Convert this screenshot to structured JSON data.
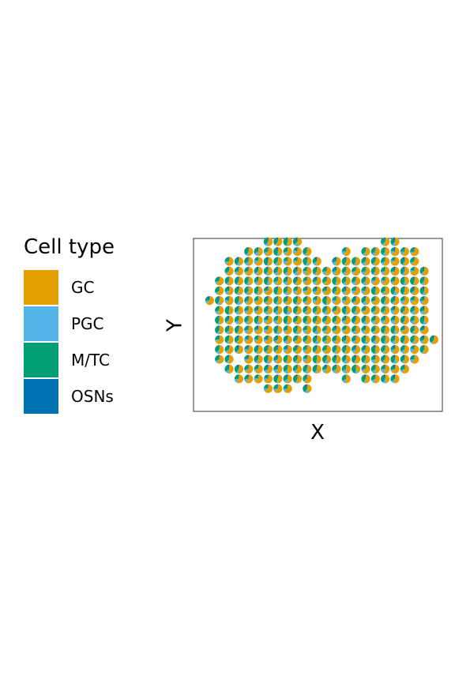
{
  "chart_data": {
    "type": "scatter",
    "subtype": "spatial scatter of pie glyphs (cell-type deconvolution)",
    "xlabel": "X",
    "ylabel": "Y",
    "legend_title": "Cell type",
    "legend_position": "left",
    "legend": [
      {
        "name": "GC",
        "color": "#E69F00"
      },
      {
        "name": "PGC",
        "color": "#56B4E9"
      },
      {
        "name": "M/TC",
        "color": "#009E73"
      },
      {
        "name": "OSNs",
        "color": "#0072B2"
      }
    ],
    "grid": false,
    "axis_ticks": false,
    "spot_rows": [
      {
        "y": 17,
        "x": [
          7,
          8,
          9,
          10,
          19,
          20
        ]
      },
      {
        "y": 16,
        "x": [
          5,
          6,
          7,
          8,
          9,
          10,
          11,
          15,
          17,
          18,
          19,
          20,
          21,
          22
        ]
      },
      {
        "y": 15,
        "x": [
          3,
          4,
          5,
          6,
          7,
          8,
          9,
          10,
          11,
          12,
          14,
          15,
          16,
          17,
          18,
          19,
          20,
          21,
          22
        ]
      },
      {
        "y": 14,
        "x": [
          3,
          4,
          5,
          6,
          7,
          8,
          9,
          10,
          11,
          12,
          13,
          14,
          15,
          16,
          17,
          18,
          19,
          20,
          21,
          22,
          23
        ]
      },
      {
        "y": 13,
        "x": [
          2,
          3,
          4,
          5,
          6,
          7,
          8,
          9,
          10,
          11,
          12,
          13,
          14,
          15,
          16,
          17,
          18,
          19,
          20,
          21,
          22,
          23
        ]
      },
      {
        "y": 12,
        "x": [
          2,
          3,
          4,
          5,
          6,
          7,
          8,
          9,
          10,
          11,
          12,
          13,
          14,
          15,
          16,
          17,
          18,
          19,
          20,
          21,
          22,
          23
        ]
      },
      {
        "y": 11,
        "x": [
          1,
          2,
          3,
          4,
          5,
          6,
          7,
          8,
          9,
          10,
          11,
          12,
          13,
          14,
          15,
          16,
          17,
          18,
          19,
          20,
          21,
          22,
          23
        ]
      },
      {
        "y": 10,
        "x": [
          2,
          3,
          4,
          5,
          6,
          7,
          8,
          9,
          10,
          11,
          12,
          13,
          14,
          15,
          16,
          17,
          18,
          19,
          20,
          21,
          22,
          23
        ]
      },
      {
        "y": 9,
        "x": [
          2,
          3,
          4,
          5,
          6,
          7,
          8,
          9,
          10,
          11,
          12,
          13,
          14,
          15,
          16,
          17,
          18,
          19,
          20,
          21,
          22,
          23
        ]
      },
      {
        "y": 8,
        "x": [
          2,
          3,
          4,
          5,
          6,
          7,
          8,
          9,
          10,
          11,
          12,
          13,
          14,
          15,
          16,
          17,
          18,
          19,
          20,
          21,
          22,
          23
        ]
      },
      {
        "y": 7,
        "x": [
          2,
          3,
          4,
          5,
          6,
          7,
          8,
          9,
          10,
          11,
          12,
          13,
          14,
          15,
          16,
          17,
          18,
          19,
          20,
          21,
          22,
          23,
          24
        ]
      },
      {
        "y": 6,
        "x": [
          2,
          3,
          4,
          5,
          6,
          7,
          8,
          9,
          10,
          11,
          12,
          13,
          14,
          15,
          16,
          17,
          18,
          19,
          20,
          21,
          22,
          23
        ]
      },
      {
        "y": 5,
        "x": [
          2,
          3,
          5,
          6,
          7,
          8,
          9,
          10,
          11,
          12,
          13,
          14,
          15,
          16,
          17,
          18,
          19,
          20,
          21,
          22
        ]
      },
      {
        "y": 4,
        "x": [
          3,
          4,
          5,
          6,
          7,
          8,
          9,
          10,
          11,
          12,
          13,
          14,
          15,
          16,
          17,
          18,
          19,
          20,
          21
        ]
      },
      {
        "y": 3,
        "x": [
          4,
          5,
          6,
          7,
          8,
          9,
          10,
          11,
          15,
          17,
          18,
          19,
          20
        ]
      },
      {
        "y": 2,
        "x": [
          7,
          8,
          9,
          11
        ]
      }
    ],
    "xlim": [
      0,
      25
    ],
    "ylim": [
      1,
      18
    ]
  }
}
